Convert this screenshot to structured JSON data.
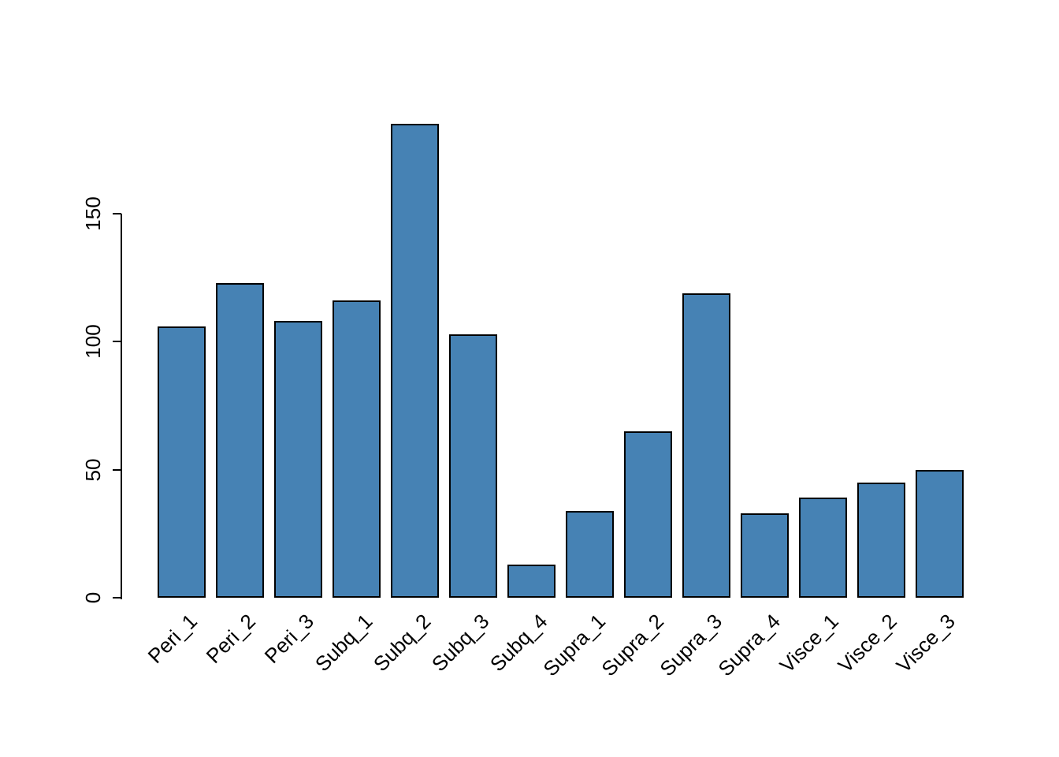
{
  "chart_data": {
    "type": "bar",
    "title": "",
    "xlabel": "",
    "ylabel": "",
    "categories": [
      "Peri_1",
      "Peri_2",
      "Peri_3",
      "Subq_1",
      "Subq_2",
      "Subq_3",
      "Subq_4",
      "Supra_1",
      "Supra_2",
      "Supra_3",
      "Supra_4",
      "Visce_1",
      "Visce_2",
      "Visce_3"
    ],
    "values": [
      106,
      123,
      108,
      116,
      185,
      103,
      13,
      34,
      65,
      119,
      33,
      39,
      45,
      50
    ],
    "yticks": [
      0,
      50,
      100,
      150
    ],
    "ylim": [
      0,
      190
    ],
    "grid": false,
    "legend": "none",
    "bar_color": "#4682B4",
    "bar_border_color": "#000000",
    "axis_color": "#000000"
  }
}
